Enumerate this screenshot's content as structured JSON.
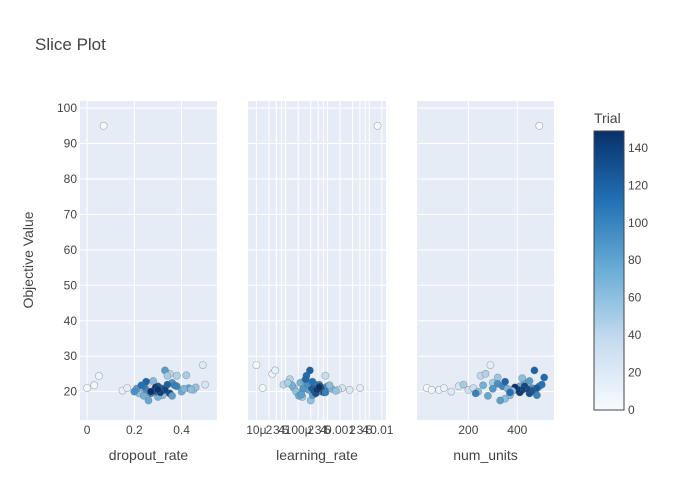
{
  "chart_data": {
    "type": "scatter",
    "title": "Slice Plot",
    "ylabel": "Objective Value",
    "ylim": [
      12,
      102
    ],
    "yticks": [
      20,
      30,
      40,
      50,
      60,
      70,
      80,
      90,
      100
    ],
    "colorbar": {
      "title": "Trial",
      "range": [
        0,
        149
      ],
      "ticks": [
        0,
        20,
        40,
        60,
        80,
        100,
        120,
        140
      ],
      "colors": [
        "#f7fbff",
        "#c6dbef",
        "#6baed6",
        "#2171b5",
        "#08306b"
      ]
    },
    "panels": [
      {
        "xlabel": "dropout_rate",
        "scale": "linear",
        "xlim": [
          -0.03,
          0.55
        ],
        "ticks": [
          {
            "value": 0,
            "label": "0"
          },
          {
            "value": 0.2,
            "label": "0.2"
          },
          {
            "value": 0.4,
            "label": "0.4"
          }
        ],
        "points": [
          [
            0.07,
            95,
            1
          ],
          [
            0.0,
            21,
            3
          ],
          [
            0.03,
            21.8,
            5
          ],
          [
            0.05,
            24.4,
            8
          ],
          [
            0.15,
            20.3,
            12
          ],
          [
            0.17,
            21,
            15
          ],
          [
            0.49,
            27.5,
            20
          ],
          [
            0.5,
            22,
            25
          ],
          [
            0.22,
            21,
            30
          ],
          [
            0.26,
            22.5,
            35
          ],
          [
            0.35,
            25,
            40
          ],
          [
            0.38,
            24.5,
            45
          ],
          [
            0.42,
            24.6,
            50
          ],
          [
            0.45,
            20.5,
            55
          ],
          [
            0.32,
            19,
            60
          ],
          [
            0.28,
            23,
            65
          ],
          [
            0.3,
            18.5,
            70
          ],
          [
            0.4,
            20,
            75
          ],
          [
            0.43,
            21,
            80
          ],
          [
            0.33,
            26,
            85
          ],
          [
            0.36,
            22.5,
            90
          ],
          [
            0.25,
            20.5,
            95
          ],
          [
            0.27,
            19.5,
            100
          ],
          [
            0.24,
            21.5,
            105
          ],
          [
            0.31,
            21,
            110
          ],
          [
            0.29,
            20,
            115
          ],
          [
            0.34,
            22,
            120
          ],
          [
            0.3,
            21.5,
            125
          ],
          [
            0.32,
            20.8,
            128
          ],
          [
            0.28,
            20.2,
            131
          ],
          [
            0.35,
            19.5,
            134
          ],
          [
            0.33,
            20.5,
            137
          ],
          [
            0.31,
            19.8,
            140
          ],
          [
            0.29,
            21.2,
            143
          ],
          [
            0.3,
            20.6,
            146
          ],
          [
            0.27,
            20,
            148
          ],
          [
            0.22,
            19.5,
            60
          ],
          [
            0.24,
            18.8,
            72
          ],
          [
            0.26,
            17.5,
            78
          ],
          [
            0.21,
            20.8,
            88
          ],
          [
            0.2,
            20,
            92
          ],
          [
            0.38,
            21.5,
            98
          ],
          [
            0.41,
            20.8,
            68
          ],
          [
            0.46,
            21.2,
            58
          ],
          [
            0.44,
            20.6,
            62
          ],
          [
            0.36,
            18.8,
            83
          ],
          [
            0.25,
            22.8,
            118
          ],
          [
            0.23,
            21.8,
            112
          ],
          [
            0.34,
            24.5,
            50
          ],
          [
            0.37,
            21.8,
            102
          ]
        ]
      },
      {
        "xlabel": "learning_rate",
        "scale": "log",
        "xlim": [
          -5.2,
          -1.9
        ],
        "ticks": [
          {
            "value": -5,
            "label": "10μ"
          },
          {
            "value": -4.699,
            "label": "2"
          },
          {
            "value": -4.523,
            "label": "3"
          },
          {
            "value": -4.398,
            "label": "4"
          },
          {
            "value": -4.301,
            "label": "5"
          },
          {
            "value": -4,
            "label": "100μ"
          },
          {
            "value": -3.699,
            "label": "2"
          },
          {
            "value": -3.523,
            "label": "3"
          },
          {
            "value": -3.398,
            "label": "4"
          },
          {
            "value": -3.301,
            "label": "5"
          },
          {
            "value": -3,
            "label": "0.001"
          },
          {
            "value": -2.699,
            "label": "2"
          },
          {
            "value": -2.523,
            "label": "3"
          },
          {
            "value": -2.398,
            "label": "4"
          },
          {
            "value": -2.301,
            "label": "5"
          },
          {
            "value": -2,
            "label": "0.01"
          }
        ],
        "points": [
          [
            -2.1,
            95,
            1
          ],
          [
            -5.0,
            27.5,
            3
          ],
          [
            -4.85,
            21,
            5
          ],
          [
            -4.62,
            25,
            8
          ],
          [
            -4.55,
            26,
            12
          ],
          [
            -2.52,
            21,
            15
          ],
          [
            -2.77,
            20.5,
            20
          ],
          [
            -2.95,
            21,
            25
          ],
          [
            -3.05,
            20.5,
            30
          ],
          [
            -3.35,
            24.5,
            35
          ],
          [
            -4.35,
            22,
            40
          ],
          [
            -4.2,
            23.5,
            45
          ],
          [
            -4.0,
            19.5,
            50
          ],
          [
            -3.9,
            18.5,
            55
          ],
          [
            -3.7,
            17.5,
            60
          ],
          [
            -4.1,
            21,
            65
          ],
          [
            -3.95,
            22.5,
            70
          ],
          [
            -3.85,
            23,
            75
          ],
          [
            -3.75,
            20.5,
            80
          ],
          [
            -3.65,
            19,
            85
          ],
          [
            -3.55,
            21.5,
            90
          ],
          [
            -3.5,
            22,
            95
          ],
          [
            -3.45,
            20,
            100
          ],
          [
            -3.4,
            21,
            105
          ],
          [
            -3.6,
            22,
            110
          ],
          [
            -3.8,
            24.5,
            115
          ],
          [
            -3.72,
            26,
            120
          ],
          [
            -3.68,
            21,
            125
          ],
          [
            -3.62,
            20.2,
            128
          ],
          [
            -3.58,
            19.5,
            131
          ],
          [
            -3.52,
            20.8,
            134
          ],
          [
            -3.48,
            21.5,
            137
          ],
          [
            -3.42,
            20.5,
            140
          ],
          [
            -3.38,
            19.8,
            143
          ],
          [
            -3.55,
            20.6,
            146
          ],
          [
            -3.5,
            21.2,
            148
          ],
          [
            -4.05,
            20,
            60
          ],
          [
            -4.15,
            21.8,
            72
          ],
          [
            -3.98,
            18.8,
            78
          ],
          [
            -3.88,
            20.8,
            88
          ],
          [
            -3.78,
            22.2,
            92
          ],
          [
            -3.3,
            21.5,
            98
          ],
          [
            -3.2,
            20.8,
            68
          ],
          [
            -3.1,
            20.2,
            58
          ],
          [
            -3.25,
            21.8,
            62
          ],
          [
            -3.92,
            19.2,
            83
          ],
          [
            -3.82,
            23.5,
            118
          ],
          [
            -3.66,
            22.8,
            112
          ],
          [
            -4.25,
            22.5,
            50
          ],
          [
            -3.35,
            19.8,
            102
          ]
        ]
      },
      {
        "xlabel": "num_units",
        "scale": "linear",
        "xlim": [
          -10,
          550
        ],
        "ticks": [
          {
            "value": 200,
            "label": "200"
          },
          {
            "value": 400,
            "label": "400"
          }
        ],
        "points": [
          [
            490,
            95,
            1
          ],
          [
            30,
            21,
            3
          ],
          [
            50,
            20.5,
            5
          ],
          [
            80,
            20.5,
            8
          ],
          [
            100,
            21,
            12
          ],
          [
            290,
            27.5,
            15
          ],
          [
            130,
            20,
            20
          ],
          [
            160,
            21.5,
            25
          ],
          [
            200,
            20.5,
            30
          ],
          [
            220,
            21,
            35
          ],
          [
            250,
            24.5,
            40
          ],
          [
            270,
            25,
            45
          ],
          [
            300,
            22.5,
            50
          ],
          [
            320,
            24,
            55
          ],
          [
            350,
            18,
            60
          ],
          [
            370,
            19,
            65
          ],
          [
            390,
            20.5,
            70
          ],
          [
            410,
            21.5,
            75
          ],
          [
            430,
            22.5,
            80
          ],
          [
            450,
            23,
            85
          ],
          [
            460,
            21,
            90
          ],
          [
            470,
            20,
            95
          ],
          [
            480,
            19,
            100
          ],
          [
            490,
            21.5,
            105
          ],
          [
            500,
            22,
            110
          ],
          [
            510,
            24,
            115
          ],
          [
            470,
            26,
            120
          ],
          [
            480,
            21,
            125
          ],
          [
            460,
            20.2,
            128
          ],
          [
            450,
            19.5,
            131
          ],
          [
            440,
            20.8,
            134
          ],
          [
            430,
            21.5,
            137
          ],
          [
            420,
            20.5,
            140
          ],
          [
            410,
            19.8,
            143
          ],
          [
            400,
            20.6,
            146
          ],
          [
            390,
            21.2,
            148
          ],
          [
            240,
            20,
            60
          ],
          [
            260,
            21.8,
            72
          ],
          [
            280,
            18.8,
            78
          ],
          [
            300,
            20.8,
            88
          ],
          [
            320,
            22.2,
            92
          ],
          [
            340,
            21.5,
            98
          ],
          [
            360,
            20.8,
            68
          ],
          [
            380,
            20.2,
            58
          ],
          [
            420,
            23.8,
            62
          ],
          [
            330,
            17.5,
            83
          ],
          [
            350,
            22.8,
            118
          ],
          [
            370,
            19.8,
            112
          ],
          [
            180,
            22,
            50
          ],
          [
            230,
            19.5,
            102
          ]
        ]
      }
    ]
  }
}
